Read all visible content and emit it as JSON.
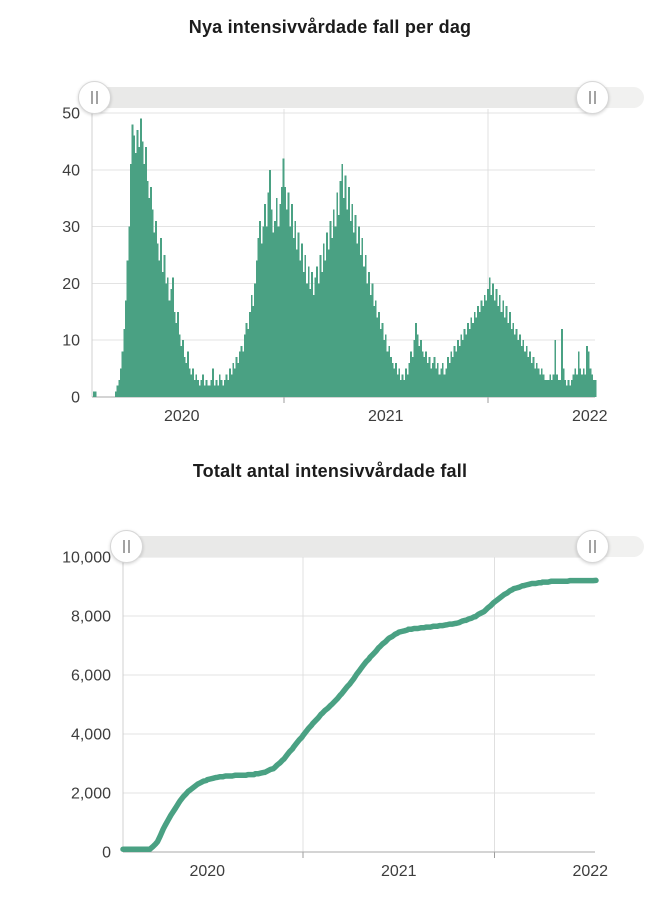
{
  "colors": {
    "accent_green": "#4aa183",
    "grid_line": "#e3e3e3",
    "year_grid_line": "#e0e0e0",
    "x_axis_line": "#a9a9a9",
    "y_axis_line": "#d0d0d0",
    "tick_mark": "#9e9e9e",
    "tick_text": "#3d3d3d",
    "title_text": "#1c1c1c",
    "slider_track": "#ececeb",
    "slider_handle_border": "#d7d7d7",
    "slider_grip": "#a3a3a3"
  },
  "icons": {
    "range_slider_handle_grip": "two-vertical-bars"
  },
  "chart_data": [
    {
      "type": "bar",
      "title": "Nya intensivvårdade fall per dag",
      "legend_position": "none",
      "grid": true,
      "x_axis": {
        "unit": "year",
        "tick_labels": [
          "2020",
          "2021",
          "2022"
        ],
        "label_centers_years_since_2020": [
          0.5,
          1.5,
          2.5
        ],
        "year_boundary_ticks_years_since_2020": [
          1.0,
          2.0
        ],
        "domain_years_since_2020": [
          0.06,
          2.53
        ]
      },
      "y_axis": {
        "range": [
          0,
          50
        ],
        "tick_values": [
          0,
          10,
          20,
          30,
          40,
          50
        ],
        "tick_labels": [
          "0",
          "10",
          "20",
          "30",
          "40",
          "50"
        ]
      },
      "series": {
        "name": "Nya intensivvårdade fall per dag",
        "start_years_since_2020": 0.07,
        "step_years": 0.00822,
        "values": [
          1,
          1,
          0,
          0,
          0,
          0,
          0,
          0,
          0,
          0,
          0,
          0,
          0,
          1,
          2,
          3,
          5,
          8,
          12,
          17,
          24,
          30,
          41,
          48,
          46,
          43,
          47,
          44,
          49,
          45,
          41,
          44,
          38,
          35,
          37,
          33,
          29,
          31,
          27,
          24,
          28,
          22,
          25,
          20,
          21,
          17,
          19,
          21,
          15,
          13,
          15,
          11,
          9,
          10,
          7,
          6,
          8,
          5,
          4,
          5,
          3,
          4,
          3,
          2,
          3,
          4,
          2,
          3,
          2,
          2,
          3,
          5,
          2,
          3,
          2,
          4,
          3,
          2,
          3,
          4,
          3,
          5,
          4,
          6,
          5,
          7,
          6,
          8,
          9,
          8,
          11,
          13,
          12,
          15,
          18,
          16,
          20,
          24,
          28,
          31,
          27,
          30,
          34,
          30,
          36,
          40,
          33,
          29,
          31,
          35,
          30,
          34,
          37,
          42,
          37,
          33,
          36,
          30,
          34,
          28,
          31,
          26,
          29,
          24,
          27,
          22,
          25,
          20,
          23,
          19,
          22,
          18,
          21,
          23,
          20,
          25,
          22,
          27,
          24,
          29,
          26,
          31,
          28,
          33,
          30,
          36,
          32,
          38,
          41,
          35,
          39,
          33,
          37,
          31,
          34,
          29,
          32,
          27,
          30,
          25,
          28,
          23,
          25,
          20,
          22,
          18,
          20,
          16,
          17,
          14,
          15,
          12,
          13,
          10,
          11,
          8,
          9,
          7,
          6,
          5,
          6,
          4,
          5,
          3,
          4,
          3,
          5,
          4,
          6,
          8,
          7,
          10,
          13,
          11,
          9,
          10,
          8,
          7,
          8,
          6,
          7,
          5,
          6,
          7,
          5,
          6,
          4,
          5,
          6,
          4,
          5,
          7,
          6,
          8,
          7,
          9,
          8,
          10,
          9,
          11,
          10,
          12,
          11,
          13,
          12,
          14,
          13,
          15,
          14,
          16,
          15,
          17,
          16,
          18,
          17,
          19,
          21,
          18,
          20,
          17,
          19,
          16,
          18,
          15,
          17,
          14,
          16,
          13,
          15,
          12,
          13,
          11,
          12,
          10,
          11,
          9,
          10,
          8,
          9,
          7,
          8,
          6,
          7,
          5,
          6,
          5,
          4,
          5,
          4,
          3,
          3,
          3,
          4,
          3,
          4,
          10,
          4,
          3,
          3,
          12,
          5,
          3,
          2,
          3,
          2,
          3,
          4,
          5,
          4,
          8,
          5,
          4,
          5,
          4,
          9,
          8,
          5,
          4,
          3,
          3
        ]
      },
      "range_slider": {
        "grip_icon": "two-vertical-bars"
      }
    },
    {
      "type": "line",
      "title": "Totalt antal intensivvårdade fall",
      "legend_position": "none",
      "grid": true,
      "x_axis": {
        "unit": "year",
        "tick_labels": [
          "2020",
          "2021",
          "2022"
        ],
        "label_centers_years_since_2020": [
          0.5,
          1.5,
          2.5
        ],
        "year_boundary_ticks_years_since_2020": [
          1.0,
          2.0
        ],
        "domain_years_since_2020": [
          0.06,
          2.53
        ]
      },
      "y_axis": {
        "range": [
          0,
          10000
        ],
        "tick_values": [
          0,
          2000,
          4000,
          6000,
          8000,
          10000
        ],
        "tick_labels": [
          "0",
          "2,000",
          "4,000",
          "6,000",
          "8,000",
          "10,000"
        ]
      },
      "series": {
        "name": "Totalt antal intensivvårdade fall",
        "points": [
          [
            0.06,
            0
          ],
          [
            0.18,
            0
          ],
          [
            0.2,
            60
          ],
          [
            0.24,
            350
          ],
          [
            0.28,
            900
          ],
          [
            0.32,
            1350
          ],
          [
            0.36,
            1750
          ],
          [
            0.4,
            2050
          ],
          [
            0.45,
            2300
          ],
          [
            0.5,
            2450
          ],
          [
            0.55,
            2530
          ],
          [
            0.6,
            2570
          ],
          [
            0.65,
            2590
          ],
          [
            0.7,
            2610
          ],
          [
            0.75,
            2640
          ],
          [
            0.8,
            2700
          ],
          [
            0.85,
            2850
          ],
          [
            0.9,
            3150
          ],
          [
            0.95,
            3550
          ],
          [
            1.0,
            3950
          ],
          [
            1.05,
            4350
          ],
          [
            1.1,
            4700
          ],
          [
            1.15,
            5000
          ],
          [
            1.2,
            5350
          ],
          [
            1.25,
            5750
          ],
          [
            1.3,
            6200
          ],
          [
            1.35,
            6600
          ],
          [
            1.4,
            6950
          ],
          [
            1.45,
            7250
          ],
          [
            1.5,
            7450
          ],
          [
            1.55,
            7540
          ],
          [
            1.6,
            7580
          ],
          [
            1.65,
            7620
          ],
          [
            1.7,
            7660
          ],
          [
            1.75,
            7700
          ],
          [
            1.8,
            7760
          ],
          [
            1.85,
            7850
          ],
          [
            1.9,
            7980
          ],
          [
            1.95,
            8180
          ],
          [
            2.0,
            8480
          ],
          [
            2.05,
            8730
          ],
          [
            2.1,
            8920
          ],
          [
            2.15,
            9030
          ],
          [
            2.2,
            9100
          ],
          [
            2.25,
            9140
          ],
          [
            2.3,
            9165
          ],
          [
            2.35,
            9180
          ],
          [
            2.4,
            9190
          ],
          [
            2.45,
            9198
          ],
          [
            2.5,
            9205
          ],
          [
            2.53,
            9208
          ]
        ]
      },
      "range_slider": {
        "grip_icon": "two-vertical-bars"
      }
    }
  ]
}
